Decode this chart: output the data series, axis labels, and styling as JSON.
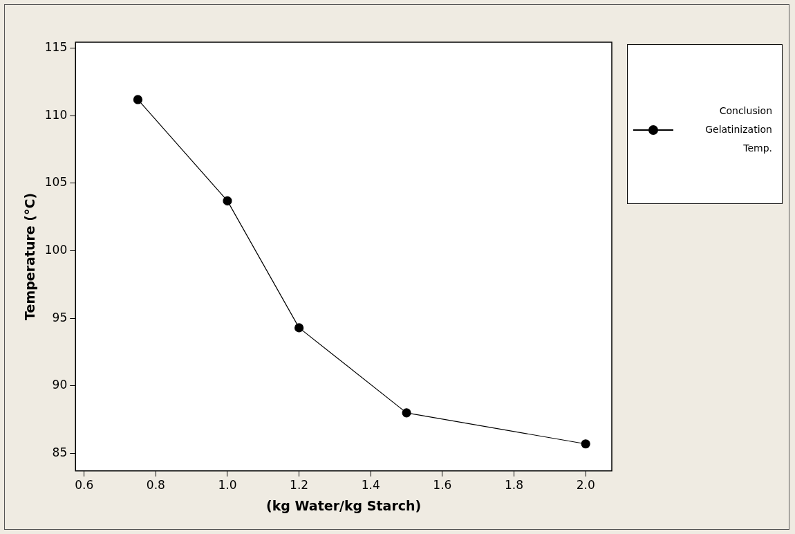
{
  "chart_data": {
    "type": "line",
    "xlabel": "(kg Water/kg Starch)",
    "ylabel": "Temperature (°C)",
    "x": [
      0.75,
      1.0,
      1.2,
      1.5,
      2.0
    ],
    "series": [
      {
        "name": "Conclusion Gelatinization Temp.",
        "color": "#000000",
        "values": [
          111.2,
          103.7,
          94.3,
          88.0,
          85.7
        ]
      }
    ],
    "xlim": [
      0.576,
      2.073
    ],
    "xticks": [
      0.6,
      0.8,
      {
        "value": 1,
        "label": "1.0"
      },
      1.2,
      1.4,
      1.6,
      1.8,
      {
        "value": 2,
        "label": "2.0"
      }
    ],
    "ylim": [
      83.7,
      115.45
    ],
    "yticks": [
      85,
      90,
      95,
      100,
      105,
      110,
      115
    ],
    "legend": "right",
    "marker": "circle",
    "line_style": "solid"
  }
}
